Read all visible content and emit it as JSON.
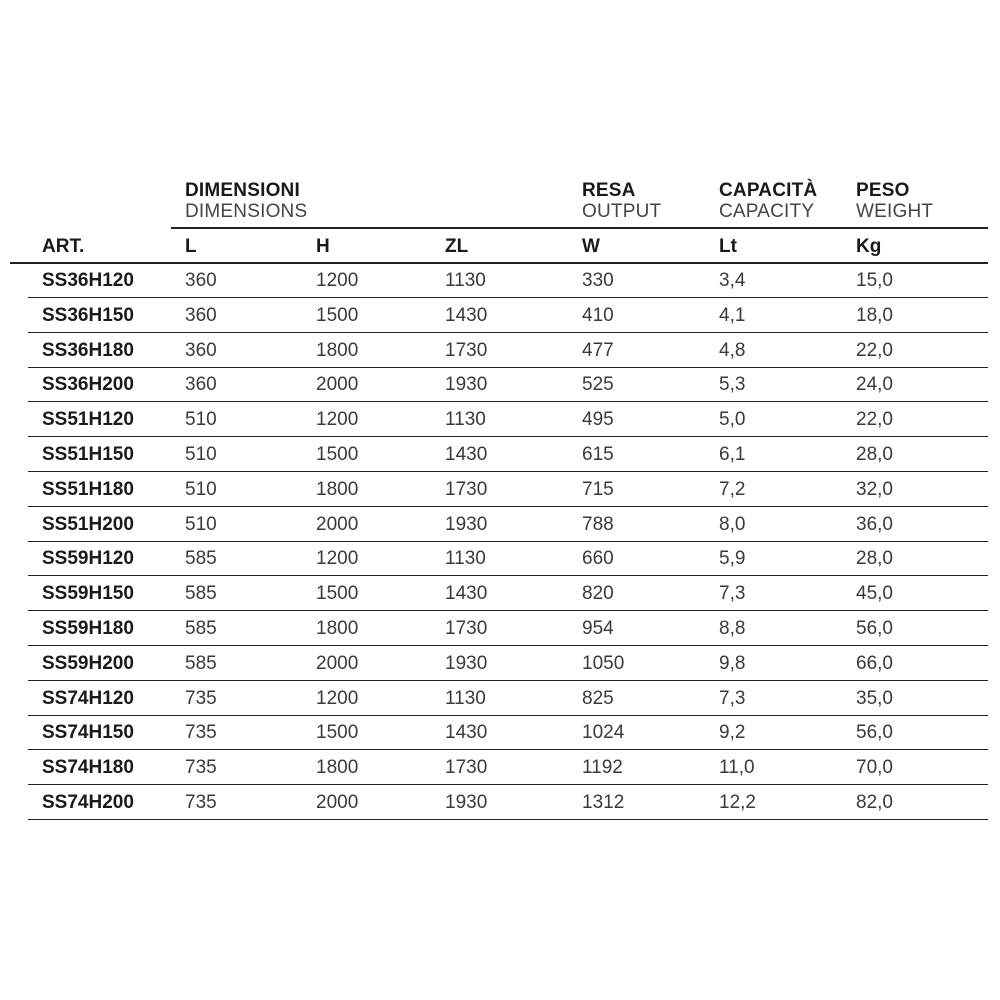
{
  "headers": {
    "dimensions_it": "DIMENSIONI",
    "dimensions_en": "DIMENSIONS",
    "output_it": "RESA",
    "output_en": "OUTPUT",
    "capacity_it": "CAPACITÀ",
    "capacity_en": "CAPACITY",
    "weight_it": "PESO",
    "weight_en": "WEIGHT"
  },
  "columns": [
    "ART.",
    "L",
    "H",
    "ZL",
    "W",
    "Lt",
    "Kg"
  ],
  "rows": [
    [
      "SS36H120",
      "360",
      "1200",
      "1130",
      "330",
      "3,4",
      "15,0"
    ],
    [
      "SS36H150",
      "360",
      "1500",
      "1430",
      "410",
      "4,1",
      "18,0"
    ],
    [
      "SS36H180",
      "360",
      "1800",
      "1730",
      "477",
      "4,8",
      "22,0"
    ],
    [
      "SS36H200",
      "360",
      "2000",
      "1930",
      "525",
      "5,3",
      "24,0"
    ],
    [
      "SS51H120",
      "510",
      "1200",
      "1130",
      "495",
      "5,0",
      "22,0"
    ],
    [
      "SS51H150",
      "510",
      "1500",
      "1430",
      "615",
      "6,1",
      "28,0"
    ],
    [
      "SS51H180",
      "510",
      "1800",
      "1730",
      "715",
      "7,2",
      "32,0"
    ],
    [
      "SS51H200",
      "510",
      "2000",
      "1930",
      "788",
      "8,0",
      "36,0"
    ],
    [
      "SS59H120",
      "585",
      "1200",
      "1130",
      "660",
      "5,9",
      "28,0"
    ],
    [
      "SS59H150",
      "585",
      "1500",
      "1430",
      "820",
      "7,3",
      "45,0"
    ],
    [
      "SS59H180",
      "585",
      "1800",
      "1730",
      "954",
      "8,8",
      "56,0"
    ],
    [
      "SS59H200",
      "585",
      "2000",
      "1930",
      "1050",
      "9,8",
      "66,0"
    ],
    [
      "SS74H120",
      "735",
      "1200",
      "1130",
      "825",
      "7,3",
      "35,0"
    ],
    [
      "SS74H150",
      "735",
      "1500",
      "1430",
      "1024",
      "9,2",
      "56,0"
    ],
    [
      "SS74H180",
      "735",
      "1800",
      "1730",
      "1192",
      "11,0",
      "70,0"
    ],
    [
      "SS74H200",
      "735",
      "2000",
      "1930",
      "1312",
      "12,2",
      "82,0"
    ]
  ]
}
